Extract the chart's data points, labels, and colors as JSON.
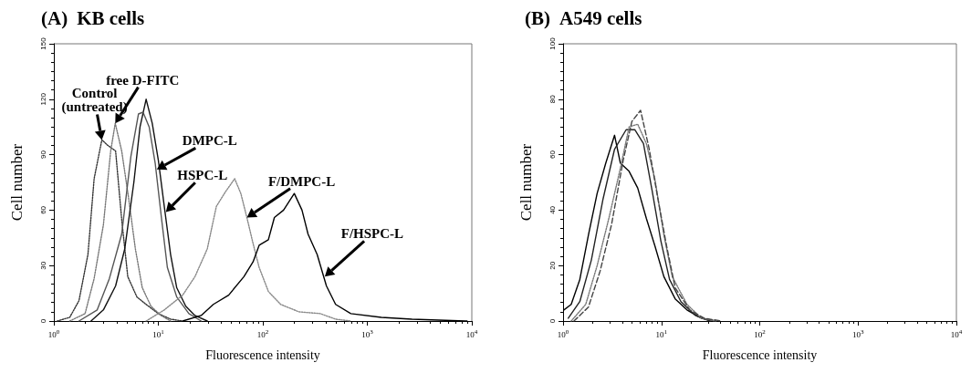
{
  "chart_data": [
    {
      "type": "line",
      "title": "(A) KB cells",
      "xlabel": "Fluorescence intensity",
      "ylabel": "Cell number",
      "log": "x",
      "marker": "none",
      "xlim": [
        1,
        10000
      ],
      "ylim": [
        0,
        150
      ],
      "xticks": [
        {
          "value": 1,
          "label": "10$^{0}$"
        },
        {
          "value": 10,
          "label": "10$^{1}$"
        },
        {
          "value": 100,
          "label": "10$^{2}$"
        },
        {
          "value": 1000,
          "label": "10$^{3}$"
        },
        {
          "value": 10000,
          "label": "10$^{4}$"
        }
      ],
      "yticks": [
        0,
        30,
        60,
        90,
        120,
        150
      ],
      "series": [
        {
          "color": "#333333",
          "line_style": "dotted",
          "x": [
            1.08,
            1.42,
            1.74,
            2.12,
            2.43,
            2.88,
            3.29,
            3.9,
            4.46,
            5.1,
            6.24,
            7.64,
            10,
            13.1,
            17.1
          ],
          "values": [
            0,
            2,
            11,
            36,
            77,
            98,
            95,
            92,
            55,
            24,
            13,
            9,
            4,
            1,
            0
          ]
        },
        {
          "color": "#777777",
          "line_style": "dotted",
          "x": [
            1.42,
            1.99,
            2.43,
            2.98,
            3.5,
            3.87,
            4.46,
            5.18,
            6.03,
            7.02,
            8.5,
            10.6,
            13.1
          ],
          "values": [
            0,
            4,
            23,
            52,
            92,
            107,
            92,
            67,
            39,
            18,
            8,
            3,
            0
          ]
        },
        {
          "color": "#111111",
          "line_style": "solid",
          "x": [
            2.27,
            2.98,
            3.9,
            4.77,
            5.83,
            6.68,
            7.64,
            8.74,
            10,
            11.4,
            13.1,
            15,
            18.3,
            22.4,
            29.4
          ],
          "values": [
            0,
            6,
            19,
            39,
            75,
            105,
            120,
            107,
            87,
            62,
            36,
            18,
            8,
            3,
            0
          ]
        },
        {
          "color": "#555555",
          "line_style": "solid",
          "x": [
            1.74,
            2.6,
            3.4,
            4.46,
            5.46,
            6.45,
            7.14,
            8.17,
            9.35,
            10.7,
            12.2,
            15,
            19.6,
            25.7
          ],
          "values": [
            0,
            6,
            23,
            47,
            89,
            112,
            113,
            105,
            85,
            56,
            29,
            13,
            4,
            0
          ]
        },
        {
          "color": "#888888",
          "line_style": "dotted",
          "x": [
            7.64,
            11.4,
            17.1,
            22.4,
            29.4,
            35.9,
            44,
            53.8,
            61.6,
            70.4,
            80.6,
            92.2,
            113,
            148,
            221,
            355,
            497,
            695
          ],
          "values": [
            0,
            6,
            14,
            24,
            39,
            62,
            70,
            77,
            69,
            56,
            42,
            29,
            16,
            9,
            5,
            4,
            1,
            0
          ]
        },
        {
          "color": "#000000",
          "line_style": "solid",
          "x": [
            17.1,
            25.7,
            33.6,
            47.1,
            65.9,
            80.6,
            92.2,
            113,
            129,
            158,
            200,
            237,
            271,
            331,
            406,
            497,
            695,
            1363,
            2673,
            9000
          ],
          "values": [
            0,
            3,
            9,
            14,
            24,
            32,
            41,
            44,
            56,
            60,
            69,
            60,
            47,
            36,
            19,
            9,
            4,
            2,
            1,
            0
          ]
        }
      ],
      "annotations": [
        {
          "text": "Control\n(untreated)",
          "x": 2.88,
          "y": 98
        },
        {
          "text": "free D-FITC",
          "x": 3.87,
          "y": 107
        },
        {
          "text": "DMPC-L",
          "x": 9.67,
          "y": 82
        },
        {
          "text": "HSPC-L",
          "x": 11.8,
          "y": 59
        },
        {
          "text": "F/DMPC-L",
          "x": 70.4,
          "y": 56
        },
        {
          "text": "F/HSPC-L",
          "x": 392,
          "y": 24
        }
      ]
    },
    {
      "type": "line",
      "title": "(B) A549 cells",
      "xlabel": "Fluorescence intensity",
      "ylabel": "Cell number",
      "log": "x",
      "marker": "none",
      "xlim": [
        1,
        10000
      ],
      "ylim": [
        0,
        100
      ],
      "xticks": [
        {
          "value": 1,
          "label": "10$^{0}$"
        },
        {
          "value": 10,
          "label": "10$^{1}$"
        },
        {
          "value": 100,
          "label": "10$^{2}$"
        },
        {
          "value": 1000,
          "label": "10$^{3}$"
        },
        {
          "value": 10000,
          "label": "10$^{4}$"
        }
      ],
      "yticks": [
        0,
        20,
        40,
        60,
        80,
        100
      ],
      "series": [
        {
          "color": "#000000",
          "line_style": "solid",
          "x": [
            1.02,
            1.21,
            1.48,
            1.81,
            2.22,
            2.72,
            3.34,
            3.82,
            4.69,
            5.74,
            7.03,
            8.61,
            10.6,
            13.8,
            18.2,
            25.5,
            35.7
          ],
          "values": [
            4,
            6,
            15,
            31,
            46,
            57,
            67,
            57,
            54,
            48,
            37,
            27,
            16,
            8,
            4,
            1,
            0
          ]
        },
        {
          "color": "#222222",
          "line_style": "solid",
          "x": [
            1.13,
            1.48,
            1.94,
            2.55,
            3.34,
            4.38,
            5.36,
            6.57,
            8.05,
            9.86,
            12.1,
            15.8,
            22.2,
            31.2
          ],
          "values": [
            1,
            7,
            22,
            44,
            62,
            69,
            69,
            64,
            47,
            29,
            15,
            7,
            2,
            0
          ]
        },
        {
          "color": "#777777",
          "line_style": "dotted",
          "x": [
            1.21,
            1.7,
            2.22,
            2.92,
            3.82,
            4.69,
            5.74,
            7.03,
            8.61,
            10.6,
            12.9,
            18.2,
            25.5,
            35.7
          ],
          "values": [
            0,
            6,
            20,
            37,
            55,
            70,
            71,
            64,
            51,
            31,
            16,
            6,
            1,
            0
          ]
        },
        {
          "color": "#444444",
          "line_style": "dashed",
          "x": [
            1.29,
            1.81,
            2.38,
            3.12,
            4.09,
            5.01,
            6.14,
            7.52,
            9.22,
            11.3,
            13.8,
            19.4,
            27.2,
            40.9
          ],
          "values": [
            0,
            5,
            18,
            35,
            58,
            72,
            76,
            62,
            44,
            27,
            12,
            4,
            1,
            0
          ]
        }
      ]
    }
  ]
}
